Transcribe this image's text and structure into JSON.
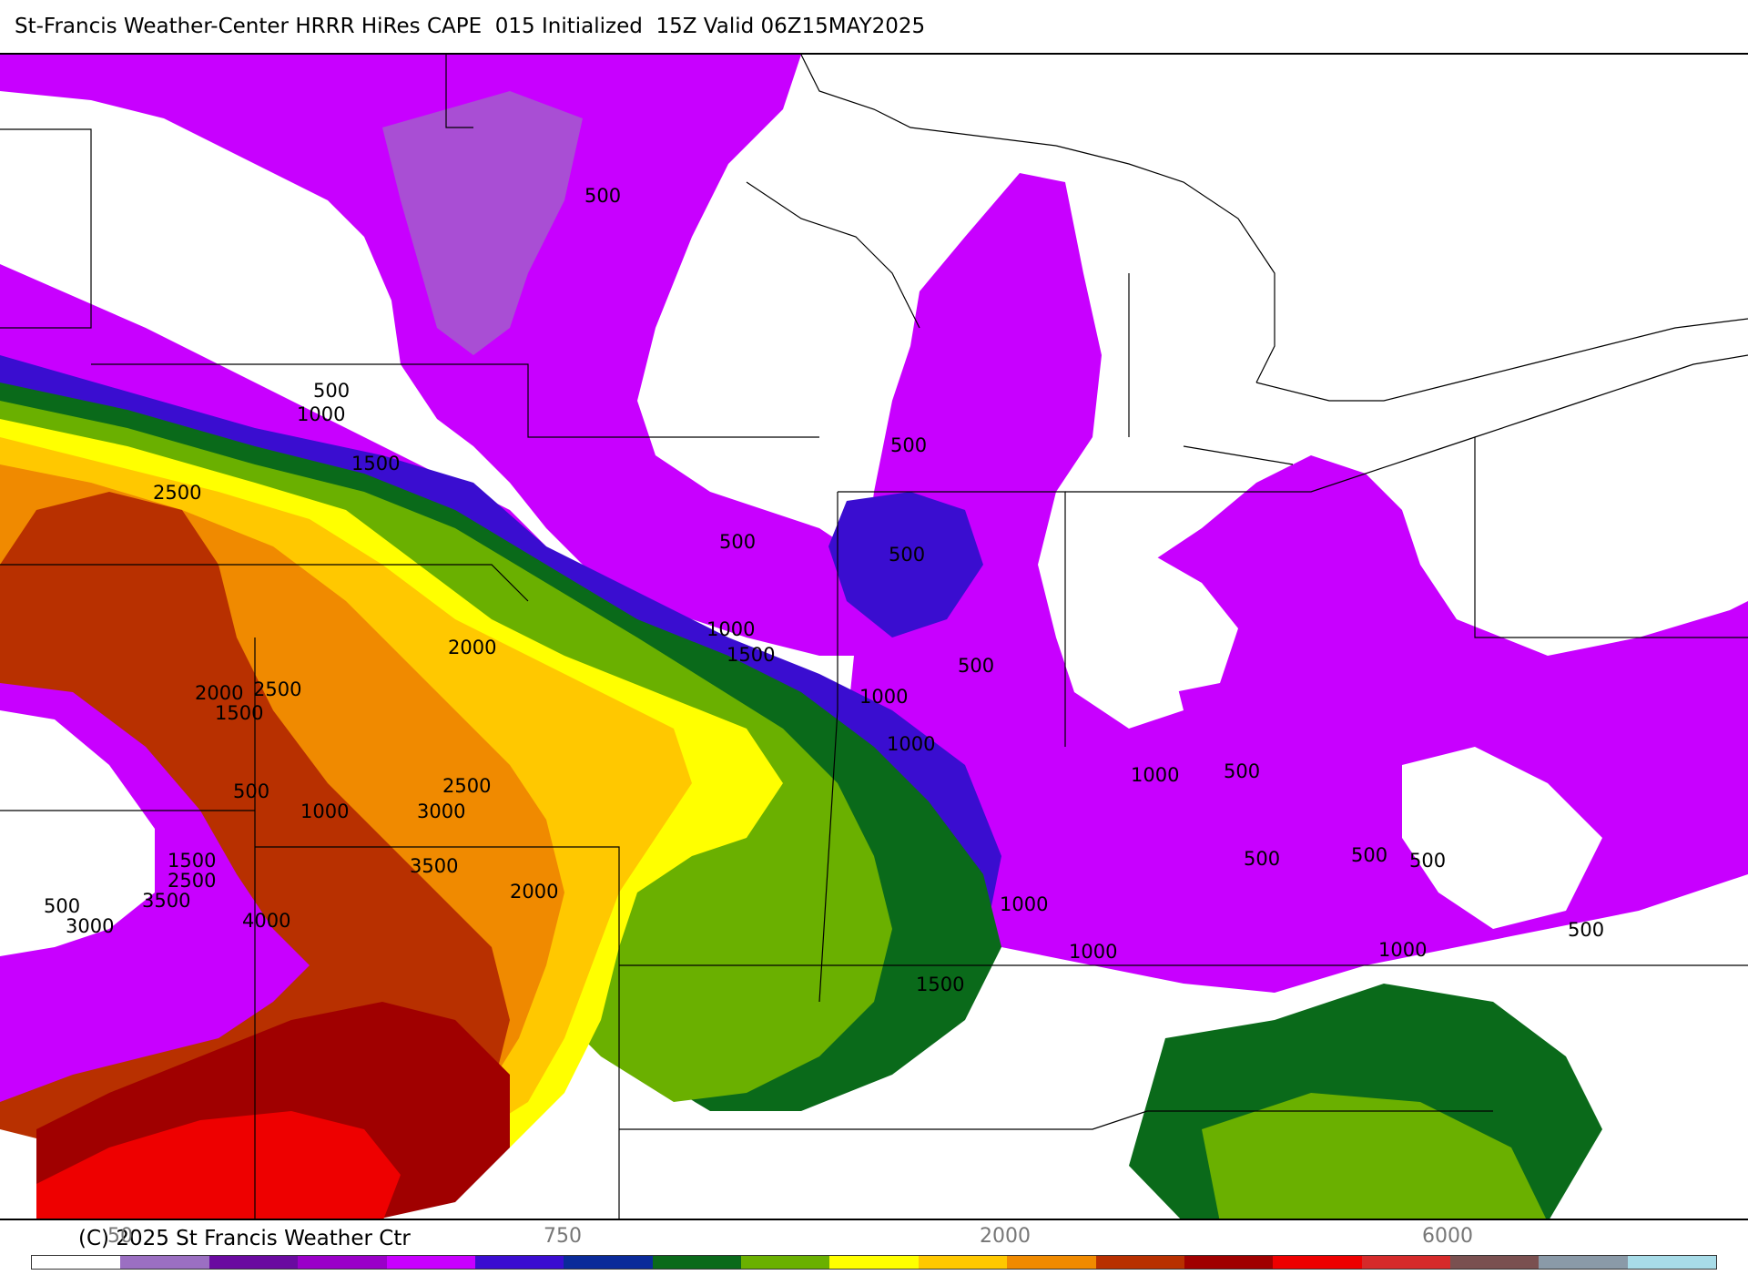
{
  "title": "St-Francis Weather-Center HRRR HiRes CAPE  015 Initialized  15Z Valid 06Z15MAY2025",
  "copyright": "(C) 2025 St Francis Weather Ctr",
  "map": {
    "field": "CAPE",
    "contour_labels": [
      "500",
      "500",
      "1000",
      "1500",
      "2500",
      "500",
      "500",
      "500",
      "1000",
      "1500",
      "2000",
      "2000",
      "2500",
      "1500",
      "500",
      "1000",
      "1000",
      "500",
      "1000",
      "1000",
      "500",
      "2500",
      "3000",
      "1500",
      "2500",
      "3500",
      "3500",
      "500",
      "3000",
      "4000",
      "2000",
      "500",
      "500",
      "500",
      "1000",
      "1000",
      "1000",
      "500",
      "1500"
    ]
  },
  "colorbar": {
    "tick_labels": [
      "50",
      "750",
      "2000",
      "6000"
    ],
    "colors": [
      "#ffffff",
      "#9b6fc2",
      "#6a0aa0",
      "#9a00c8",
      "#c800ff",
      "#3a0dd0",
      "#0a2a9a",
      "#0a6a1a",
      "#6ab000",
      "#ffff00",
      "#ffc800",
      "#f08a00",
      "#b83000",
      "#a00000",
      "#ee0000",
      "#d62a2a",
      "#7a5050",
      "#8a9aa8",
      "#a8dce8"
    ]
  },
  "palette": {
    "white": "#ffffff",
    "lavender": "#9b6fc2",
    "purple": "#c800ff",
    "blue": "#3a0dd0",
    "dark_green": "#0a6a1a",
    "green": "#6ab000",
    "yellow": "#ffff00",
    "gold": "#ffc800",
    "orange": "#f08a00",
    "rust": "#b83000",
    "dark_red": "#a00000",
    "red": "#ee0000"
  }
}
